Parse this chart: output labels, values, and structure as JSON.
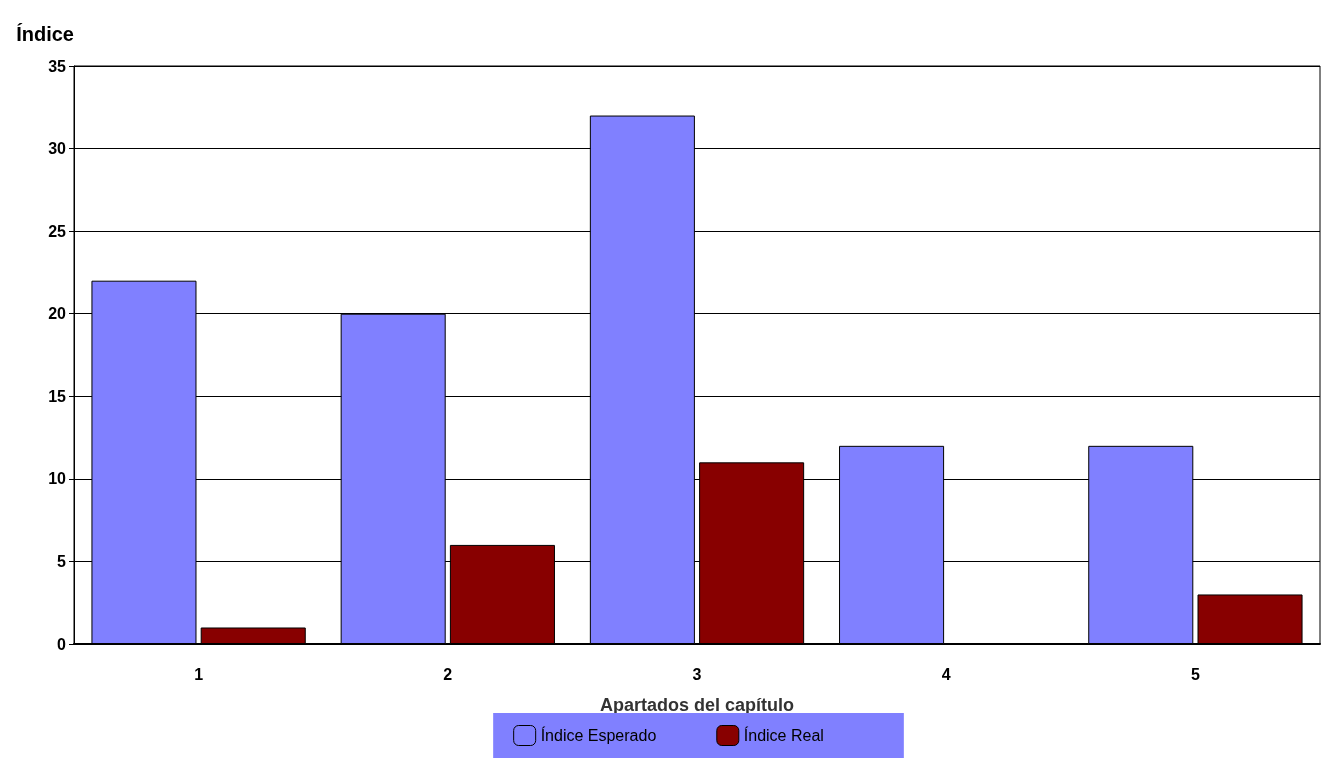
{
  "chart_data": {
    "type": "bar",
    "ylabel": "Índice",
    "xlabel": "Apartados del capítulo",
    "categories": [
      "1",
      "2",
      "3",
      "4",
      "5"
    ],
    "series": [
      {
        "name": "Índice Esperado",
        "color": "#8080ff",
        "values": [
          22,
          20,
          32,
          12,
          12
        ]
      },
      {
        "name": "Índice Real",
        "color": "#880000",
        "values": [
          1,
          6,
          11,
          0,
          3
        ]
      }
    ],
    "ylim": [
      0,
      35
    ],
    "yticks": [
      0,
      5,
      10,
      15,
      20,
      25,
      30,
      35
    ],
    "grid": "y",
    "legend": "bottom"
  }
}
